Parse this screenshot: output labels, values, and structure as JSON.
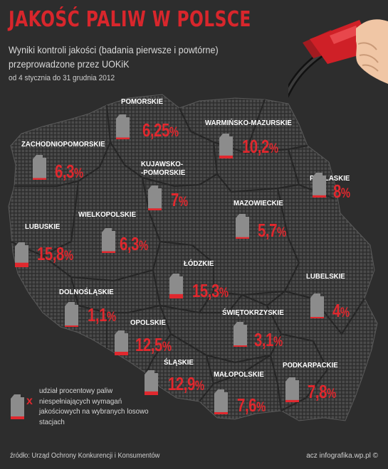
{
  "title": "JAKOŚĆ PALIW W POLSCE",
  "subtitle": "Wyniki kontroli jakości (badania pierwsze i powtórne) przeprowadzone przez UOKiK",
  "date_range": "od 4 stycznia do 31 grudnia 2012",
  "legend": {
    "text": "udział procentowy paliw niespełniających wymagań jakościowych na wybranych losowo stacjach",
    "marker": "x",
    "icon": "fuel-canister-icon"
  },
  "source": "źródło: Urząd Ochrony Konkurencji i Konsumentów",
  "credit": "acz infografika.wp.pl ©",
  "colors": {
    "background": "#2d2d2d",
    "accent_red": "#e0282e",
    "canister_gray": "#8c8c8c",
    "map_dots": "#4a4a4a"
  },
  "regions": [
    {
      "name": "POMORSKIE",
      "value": "6,25",
      "unit": "%",
      "fill": 6.25
    },
    {
      "name": "WARMIŃSKO-MAZURSKIE",
      "value": "10,2",
      "unit": "%",
      "fill": 10.2
    },
    {
      "name": "ZACHODNIOPOMORSKIE",
      "value": "6,3",
      "unit": "%",
      "fill": 6.3
    },
    {
      "name": "KUJAWSKO-\n-POMORSKIE",
      "value": "7",
      "unit": "%",
      "fill": 7
    },
    {
      "name": "PODLASKIE",
      "value": "8",
      "unit": "%",
      "fill": 8
    },
    {
      "name": "WIELKOPOLSKIE",
      "value": "6,3",
      "unit": "%",
      "fill": 6.3
    },
    {
      "name": "MAZOWIECKIE",
      "value": "5,7",
      "unit": "%",
      "fill": 5.7
    },
    {
      "name": "LUBUSKIE",
      "value": "15,8",
      "unit": "%",
      "fill": 15.8
    },
    {
      "name": "ŁÓDZKIE",
      "value": "15,3",
      "unit": "%",
      "fill": 15.3
    },
    {
      "name": "LUBELSKIE",
      "value": "4",
      "unit": "%",
      "fill": 4
    },
    {
      "name": "DOLNOŚLĄSKIE",
      "value": "1,1",
      "unit": "%",
      "fill": 1.1
    },
    {
      "name": "OPOLSKIE",
      "value": "12,5",
      "unit": "%",
      "fill": 12.5
    },
    {
      "name": "ŚWIĘTOKRZYSKIE",
      "value": "3,1",
      "unit": "%",
      "fill": 3.1
    },
    {
      "name": "ŚLĄSKIE",
      "value": "12,9",
      "unit": "%",
      "fill": 12.9
    },
    {
      "name": "MAŁOPOLSKIE",
      "value": "7,6",
      "unit": "%",
      "fill": 7.6
    },
    {
      "name": "PODKARPACKIE",
      "value": "7,8",
      "unit": "%",
      "fill": 7.8
    }
  ]
}
